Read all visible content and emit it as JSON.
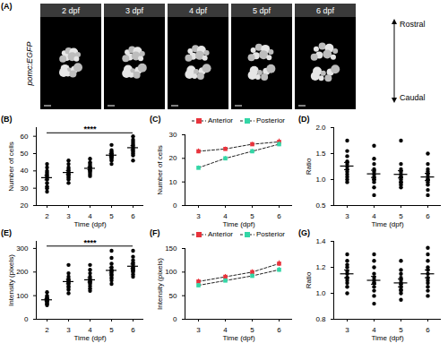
{
  "image_panel": {
    "title": "(A)",
    "times": [
      "2 dpf",
      "3 dpf",
      "4 dpf",
      "5 dpf",
      "6 dpf"
    ],
    "channel_label": "pomc:EGFP",
    "axis_labels": [
      "Rostral",
      "Caudal"
    ]
  },
  "chart_data": [
    {
      "type": "scatter",
      "title": "(B)",
      "xlabel": "Time (dpf)",
      "ylabel": "Number of cells",
      "color": "#000000",
      "x": [
        2,
        3,
        4,
        5,
        6
      ],
      "points": [
        [
          28,
          31,
          33,
          35,
          36,
          37,
          38,
          39,
          40,
          42,
          44,
          30
        ],
        [
          33,
          35,
          37,
          38,
          38,
          39,
          40,
          41,
          42,
          44,
          46,
          36
        ],
        [
          37,
          38,
          40,
          40,
          41,
          42,
          43,
          44,
          45,
          47,
          39,
          42
        ],
        [
          44,
          46,
          47,
          48,
          49,
          49,
          50,
          51,
          52,
          55,
          48,
          50
        ],
        [
          46,
          49,
          51,
          52,
          53,
          54,
          55,
          57,
          58,
          60,
          56,
          50
        ]
      ],
      "mean": [
        36.1,
        39.1,
        41.5,
        49.1,
        53.4
      ],
      "sem": [
        1.3,
        1.1,
        0.8,
        0.9,
        1.2
      ],
      "xlim": [
        1.5,
        6.5
      ],
      "xticks": [
        2,
        3,
        4,
        5,
        6
      ],
      "ylim": [
        20,
        65
      ],
      "yticks": [
        20,
        30,
        40,
        50,
        60
      ],
      "annotations": [
        {
          "text": "****",
          "x1": 2,
          "x2": 6,
          "y": 62
        }
      ]
    },
    {
      "type": "line",
      "title": "(C)",
      "xlabel": "Time (dpf)",
      "ylabel": "Number of cells",
      "x": [
        3,
        4,
        5,
        6
      ],
      "series": [
        {
          "name": "Anterior",
          "color": "#e8333c",
          "marker": "square",
          "line_style": "dashed",
          "values": [
            23,
            24,
            26,
            27
          ],
          "sem": [
            1.0,
            0.8,
            0.8,
            1.2
          ]
        },
        {
          "name": "Posterior",
          "color": "#33d6a6",
          "marker": "square",
          "line_style": "dashed",
          "values": [
            16,
            20,
            23,
            26
          ],
          "sem": [
            0.8,
            0.8,
            0.8,
            1.0
          ]
        }
      ],
      "xlim": [
        2.5,
        6.5
      ],
      "xticks": [
        3,
        4,
        5,
        6
      ],
      "ylim": [
        0,
        30
      ],
      "yticks": [
        0,
        10,
        20,
        30
      ],
      "legend": "top"
    },
    {
      "type": "scatter",
      "title": "(D)",
      "xlabel": "Time (dpf)",
      "ylabel": "Ratio",
      "color": "#000000",
      "x": [
        3,
        4,
        5,
        6
      ],
      "points": [
        [
          0.95,
          1.05,
          1.1,
          1.15,
          1.2,
          1.25,
          1.3,
          1.35,
          1.45,
          1.55,
          1.75,
          1.0
        ],
        [
          0.7,
          0.85,
          0.95,
          1.0,
          1.05,
          1.1,
          1.15,
          1.2,
          1.3,
          1.4,
          1.65,
          1.0
        ],
        [
          0.85,
          0.9,
          0.95,
          1.0,
          1.05,
          1.05,
          1.1,
          1.15,
          1.2,
          1.3,
          1.75,
          0.95
        ],
        [
          0.7,
          0.8,
          0.9,
          0.95,
          1.0,
          1.05,
          1.1,
          1.15,
          1.2,
          1.3,
          1.5,
          1.0
        ]
      ],
      "mean": [
        1.26,
        1.11,
        1.1,
        1.05
      ],
      "sem": [
        0.07,
        0.07,
        0.07,
        0.07
      ],
      "xlim": [
        2.5,
        6.5
      ],
      "xticks": [
        3,
        4,
        5,
        6
      ],
      "ylim": [
        0.5,
        2.0
      ],
      "yticks": [
        0.5,
        {
          "value": 1,
          "label": "1.0"
        },
        1.5,
        {
          "value": 2,
          "label": "2.0"
        }
      ]
    },
    {
      "type": "scatter",
      "title": "(E)",
      "xlabel": "Time (dpf)",
      "ylabel": "Intensity (pixels)",
      "color": "#000000",
      "x": [
        2,
        3,
        4,
        5,
        6
      ],
      "points": [
        [
          60,
          65,
          70,
          75,
          78,
          80,
          82,
          85,
          88,
          92,
          100,
          115
        ],
        [
          110,
          125,
          135,
          140,
          150,
          155,
          160,
          165,
          170,
          180,
          195,
          230
        ],
        [
          120,
          130,
          140,
          150,
          155,
          160,
          165,
          170,
          180,
          195,
          210,
          230
        ],
        [
          150,
          165,
          175,
          185,
          190,
          200,
          205,
          210,
          220,
          235,
          260,
          290
        ],
        [
          180,
          190,
          200,
          205,
          210,
          215,
          220,
          230,
          240,
          250,
          265,
          290
        ]
      ],
      "mean": [
        82.5,
        159.6,
        167.1,
        207.1,
        224.6
      ],
      "sem": [
        4.5,
        9.5,
        9.5,
        11.5,
        9.5
      ],
      "xlim": [
        1.5,
        6.5
      ],
      "xticks": [
        2,
        3,
        4,
        5,
        6
      ],
      "ylim": [
        0,
        330
      ],
      "yticks": [
        0,
        100,
        200,
        300
      ],
      "annotations": [
        {
          "text": "****",
          "x1": 2,
          "x2": 6,
          "y": 310
        }
      ]
    },
    {
      "type": "line",
      "title": "(F)",
      "xlabel": "Time (dpf)",
      "ylabel": "Intensity (pixels)",
      "x": [
        3,
        4,
        5,
        6
      ],
      "series": [
        {
          "name": "Anterior",
          "color": "#e8333c",
          "marker": "square",
          "line_style": "dashed",
          "values": [
            80,
            90,
            100,
            118
          ],
          "sem": [
            5,
            5,
            5,
            6
          ]
        },
        {
          "name": "Posterior",
          "color": "#33d6a6",
          "marker": "square",
          "line_style": "dashed",
          "values": [
            72,
            82,
            92,
            105
          ],
          "sem": [
            4,
            4,
            4,
            5
          ]
        }
      ],
      "xlim": [
        2.5,
        6.5
      ],
      "xticks": [
        3,
        4,
        5,
        6
      ],
      "ylim": [
        0,
        150
      ],
      "yticks": [
        0,
        50,
        100,
        150
      ],
      "legend": "top"
    },
    {
      "type": "scatter",
      "title": "(G)",
      "xlabel": "Time (dpf)",
      "ylabel": "Ratio",
      "color": "#000000",
      "x": [
        3,
        4,
        5,
        6
      ],
      "points": [
        [
          1.0,
          1.05,
          1.08,
          1.1,
          1.12,
          1.15,
          1.17,
          1.2,
          1.22,
          1.25,
          1.3,
          1.12
        ],
        [
          0.92,
          0.98,
          1.02,
          1.05,
          1.08,
          1.1,
          1.12,
          1.15,
          1.2,
          1.25,
          1.3,
          1.08
        ],
        [
          0.95,
          1.0,
          1.02,
          1.05,
          1.07,
          1.08,
          1.1,
          1.12,
          1.15,
          1.18,
          1.25,
          1.03
        ],
        [
          0.98,
          1.02,
          1.05,
          1.08,
          1.1,
          1.12,
          1.15,
          1.18,
          1.2,
          1.25,
          1.3,
          1.35
        ]
      ],
      "mean": [
        1.15,
        1.1,
        1.08,
        1.15
      ],
      "sem": [
        0.03,
        0.03,
        0.03,
        0.03
      ],
      "xlim": [
        2.5,
        6.5
      ],
      "xticks": [
        3,
        4,
        5,
        6
      ],
      "ylim": [
        0.8,
        1.4
      ],
      "yticks": [
        0.8,
        {
          "value": 1,
          "label": "1.0"
        },
        1.2,
        1.4
      ]
    }
  ]
}
